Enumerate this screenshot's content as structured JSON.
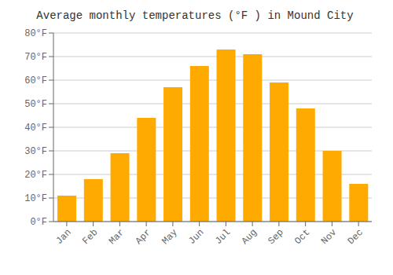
{
  "chart_data": {
    "type": "bar",
    "title": "Average monthly temperatures (°F ) in Mound City",
    "categories": [
      "Jan",
      "Feb",
      "Mar",
      "Apr",
      "May",
      "Jun",
      "Jul",
      "Aug",
      "Sep",
      "Oct",
      "Nov",
      "Dec"
    ],
    "values": [
      11,
      18,
      29,
      44,
      57,
      66,
      73,
      71,
      59,
      48,
      30,
      16
    ],
    "color": "#FFAA00",
    "ylim": [
      0,
      80
    ],
    "yticks": [
      {
        "value": 0,
        "label": "0°F"
      },
      {
        "value": 10,
        "label": "10°F"
      },
      {
        "value": 20,
        "label": "20°F"
      },
      {
        "value": 30,
        "label": "30°F"
      },
      {
        "value": 40,
        "label": "40°F"
      },
      {
        "value": 50,
        "label": "50°F"
      },
      {
        "value": 60,
        "label": "60°F"
      },
      {
        "value": 70,
        "label": "70°F"
      },
      {
        "value": 80,
        "label": "80°F"
      }
    ],
    "grid": true
  }
}
